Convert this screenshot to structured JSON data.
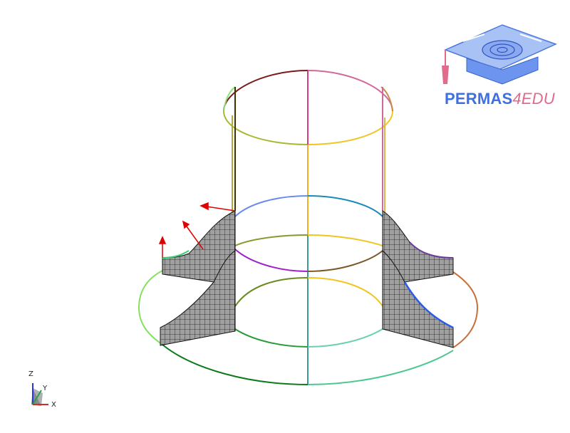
{
  "logo": {
    "name": "PERMAS",
    "suffix": "4EDU",
    "primary_color": "#3f6fe0",
    "accent_color": "#e06b8a"
  },
  "axis_triad": {
    "z": "Z",
    "y": "Y",
    "x": "X"
  },
  "colors": {
    "mesh_fill": "#9a9a9a",
    "mesh_line": "#1a1a1a",
    "arrow": "#e00000"
  }
}
